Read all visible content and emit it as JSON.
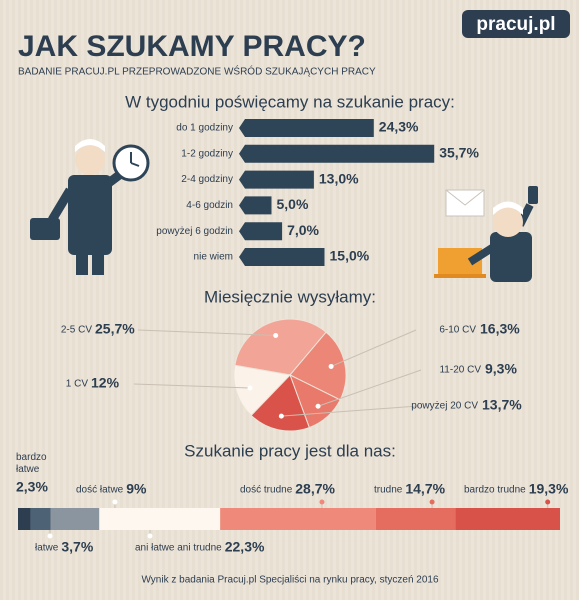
{
  "header": {
    "logo": "pracuj.pl",
    "title": "JAK SZUKAMY PRACY?",
    "subtitle": "BADANIE PRACUJ.PL PRZEPROWADZONE WŚRÓD SZUKAJĄCYCH PRACY"
  },
  "chart_data": [
    {
      "type": "bar",
      "title": "W tygodniu poświęcamy na szukanie pracy:",
      "categories": [
        "do 1  godziny",
        "1-2 godziny",
        "2-4  godziny",
        "4-6 godzin",
        "powyżej 6 godzin",
        "nie wiem"
      ],
      "values": [
        24.3,
        35.7,
        13.0,
        5.0,
        7.0,
        15.0
      ],
      "value_labels": [
        "24,3%",
        "35,7%",
        "13,0%",
        "5,0%",
        "7,0%",
        "15,0%"
      ],
      "color": "#2e4457"
    },
    {
      "type": "pie",
      "title": "Miesięcznie wysyłamy:",
      "categories": [
        "2-5 CV",
        "6-10 CV",
        "11-20 CV",
        "powyżej 20 CV",
        "1 CV"
      ],
      "values": [
        25.7,
        16.3,
        9.3,
        13.7,
        12
      ],
      "value_labels": [
        "25,7%",
        "16,3%",
        "9,3%",
        "13,7%",
        "12%"
      ],
      "colors": [
        "#f2a597",
        "#ec8677",
        "#e8796b",
        "#d9534a",
        "#fbf2ea"
      ]
    },
    {
      "type": "stacked-bar",
      "title": "Szukanie pracy jest dla nas:",
      "series": [
        {
          "name": "bardzo łatwe",
          "color": "#2c3e50",
          "values": [
            2.3
          ],
          "value_labels": [
            "2,3%"
          ]
        },
        {
          "name": "łatwe",
          "color": "#4d6275",
          "values": [
            3.7
          ],
          "value_labels": [
            "3,7%"
          ]
        },
        {
          "name": "dość łatwe",
          "color": "#8b959f",
          "values": [
            9
          ],
          "value_labels": [
            "9%"
          ]
        },
        {
          "name": "ani łatwe ani trudne",
          "color": "#fdf7f0",
          "values": [
            22.3
          ],
          "value_labels": [
            "22,3%"
          ]
        },
        {
          "name": "dość trudne",
          "color": "#ef8a7b",
          "values": [
            28.7
          ],
          "value_labels": [
            "28,7%"
          ]
        },
        {
          "name": "trudne",
          "color": "#e46d5f",
          "values": [
            14.7
          ],
          "value_labels": [
            "14,7%"
          ]
        },
        {
          "name": "bardzo trudne",
          "color": "#d9524a",
          "values": [
            19.3
          ],
          "value_labels": [
            "19,3%"
          ]
        }
      ]
    }
  ],
  "footer": "Wynik z badania Pracuj.pl Specjaliści na rynku pracy, styczeń 2016"
}
